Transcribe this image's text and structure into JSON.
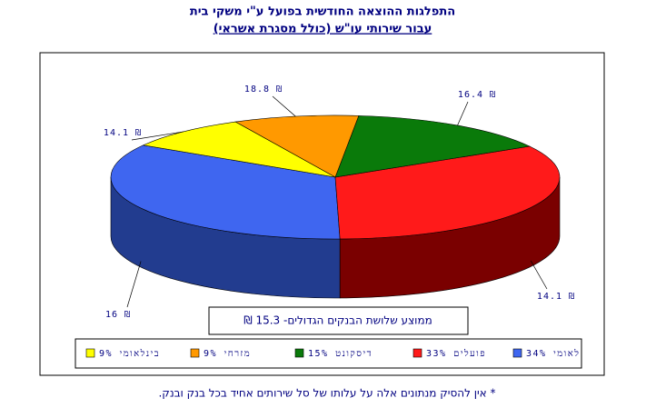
{
  "chart_data": {
    "type": "pie",
    "title": "התפלגות ההוצאה החודשית בפועל ע\"י משקי בית",
    "subtitle": "עבור שירותי עו\"ש (כולל מסגרת אשראי)",
    "categories": [
      "לאומי 34%",
      "פועלים 33%",
      "דיסקונט 15%",
      "מזרחי 9%",
      "בינלאומי 9%"
    ],
    "values": [
      34,
      33,
      15,
      9,
      9
    ],
    "colors": [
      "#3f66f0",
      "#ff1a1a",
      "#0a7a0a",
      "#ff9900",
      "#ffff00"
    ],
    "side_colors": [
      "#223c8f",
      "#7a0000",
      "#044404",
      "#8a5200",
      "#8a8a00"
    ],
    "cost_labels": [
      {
        "value": 16,
        "label": "₪ 16"
      },
      {
        "value": 14.1,
        "label": "₪ 14.1"
      },
      {
        "value": 16.4,
        "label": "₪ 16.4"
      },
      {
        "value": 18.8,
        "label": "₪ 18.8"
      },
      {
        "value": 14.1,
        "label": "₪ 14.1"
      }
    ],
    "annotation": "ממוצע שלושת הבנקים הגדולים- 15.3 ₪",
    "footnote": "* אין להסיק מנתונים אלה על עלותו של סל שירותים אחיד בכל בנק ובנק."
  }
}
